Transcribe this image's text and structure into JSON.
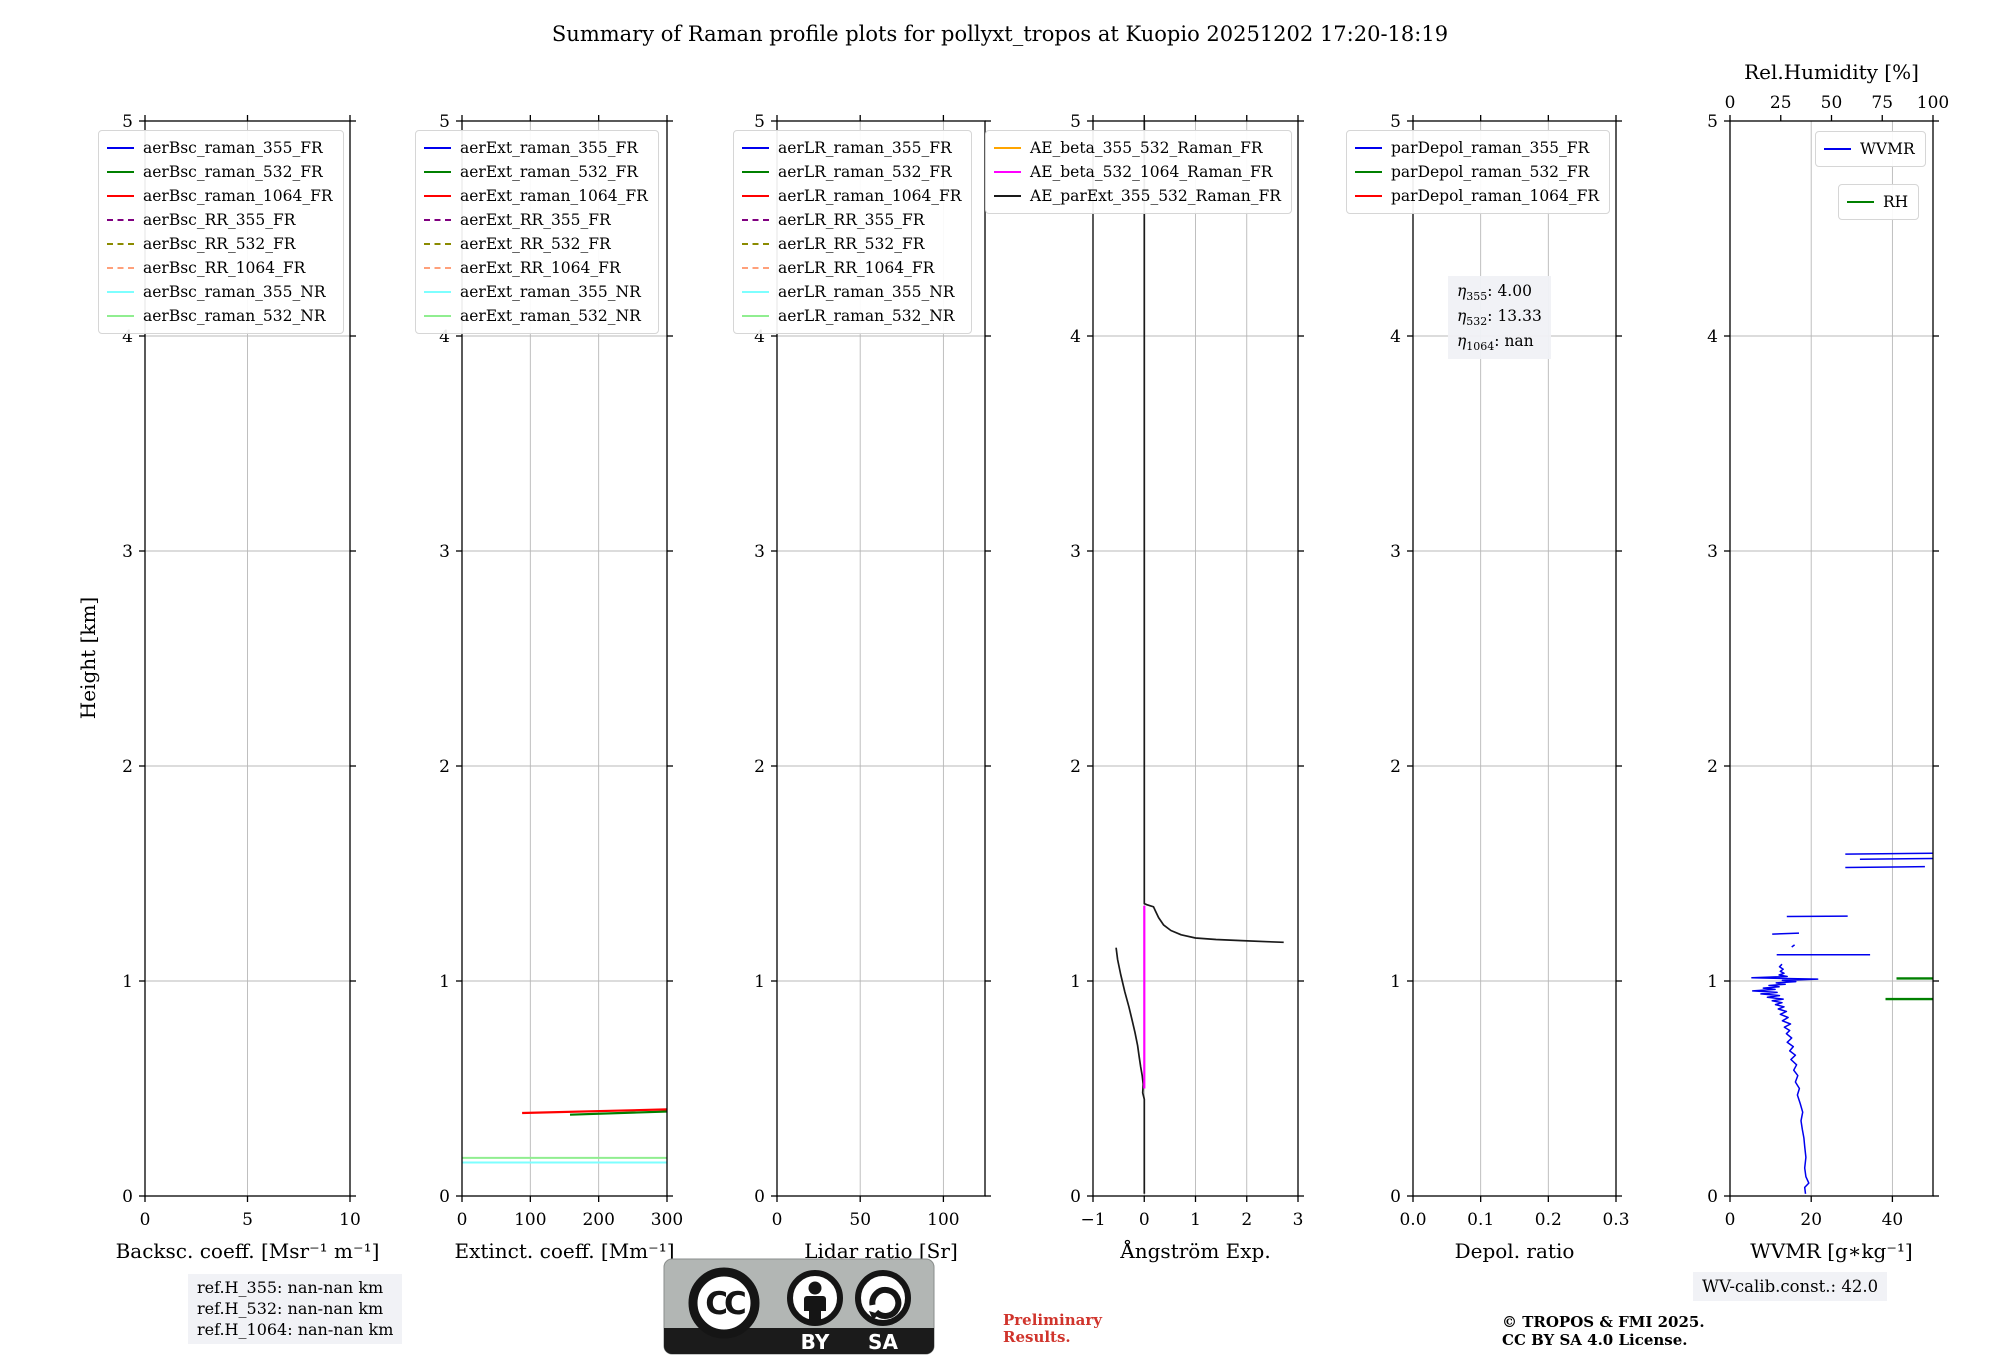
{
  "title": "Summary of Raman profile plots for pollyxt_tropos at Kuopio 20251202 17:20-18:19",
  "ylabel": "Height [km]",
  "footer": {
    "ref_h_lines": [
      "ref.H_355: nan-nan km",
      "ref.H_532: nan-nan km",
      "ref.H_1064: nan-nan km"
    ],
    "preliminary_lines": [
      "Preliminary",
      "Results."
    ],
    "copyright_lines": [
      "© TROPOS & FMI 2025.",
      "CC BY SA 4.0 License."
    ],
    "wv_calib": "WV-calib.const.: 42.0",
    "cc": {
      "cc": "CC",
      "by": "BY",
      "sa": "SA"
    }
  },
  "colors": {
    "blue": "#0000ee",
    "green": "#008000",
    "red": "#ff0000",
    "purple": "#800080",
    "olive": "#8b8b00",
    "salmon": "#ffa07a",
    "cyan": "#7dffff",
    "lightgreen": "#90ee90",
    "orange": "#ffa500",
    "magenta": "#ff00ff",
    "black": "#1a1a1a",
    "grid": "#b8b8b8"
  },
  "chart_data": [
    {
      "type": "line",
      "name": "backscatter-coefficient",
      "xlabel": "Backsc. coeff. [Msr⁻¹ m⁻¹]",
      "xlim": [
        0,
        10
      ],
      "xticks": [
        0,
        5,
        10
      ],
      "xtick_labels": [
        "0",
        "5",
        "10"
      ],
      "ylim": [
        0,
        5
      ],
      "yticks": [
        0,
        1,
        2,
        3,
        4,
        5
      ],
      "legend": [
        {
          "label": "aerBsc_raman_355_FR",
          "color": "#0000ee",
          "dash": false
        },
        {
          "label": "aerBsc_raman_532_FR",
          "color": "#008000",
          "dash": false
        },
        {
          "label": "aerBsc_raman_1064_FR",
          "color": "#ff0000",
          "dash": false
        },
        {
          "label": "aerBsc_RR_355_FR",
          "color": "#800080",
          "dash": true
        },
        {
          "label": "aerBsc_RR_532_FR",
          "color": "#8b8b00",
          "dash": true
        },
        {
          "label": "aerBsc_RR_1064_FR",
          "color": "#ffa07a",
          "dash": true
        },
        {
          "label": "aerBsc_raman_355_NR",
          "color": "#7dffff",
          "dash": false
        },
        {
          "label": "aerBsc_raman_532_NR",
          "color": "#90ee90",
          "dash": false
        }
      ],
      "series": []
    },
    {
      "type": "line",
      "name": "extinction-coefficient",
      "xlabel": "Extinct. coeff. [Mm⁻¹]",
      "xlim": [
        0,
        300
      ],
      "xticks": [
        0,
        100,
        200,
        300
      ],
      "xtick_labels": [
        "0",
        "100",
        "200",
        "300"
      ],
      "ylim": [
        0,
        5
      ],
      "yticks": [
        0,
        1,
        2,
        3,
        4,
        5
      ],
      "legend": [
        {
          "label": "aerExt_raman_355_FR",
          "color": "#0000ee",
          "dash": false
        },
        {
          "label": "aerExt_raman_532_FR",
          "color": "#008000",
          "dash": false
        },
        {
          "label": "aerExt_raman_1064_FR",
          "color": "#ff0000",
          "dash": false
        },
        {
          "label": "aerExt_RR_355_FR",
          "color": "#800080",
          "dash": true
        },
        {
          "label": "aerExt_RR_532_FR",
          "color": "#8b8b00",
          "dash": true
        },
        {
          "label": "aerExt_RR_1064_FR",
          "color": "#ffa07a",
          "dash": true
        },
        {
          "label": "aerExt_raman_355_NR",
          "color": "#7dffff",
          "dash": false
        },
        {
          "label": "aerExt_raman_532_NR",
          "color": "#90ee90",
          "dash": false
        }
      ],
      "series": [
        {
          "name": "aerExt_raman_532_NR",
          "color": "#90ee90",
          "width": 2,
          "points": [
            [
              0,
              0.177
            ],
            [
              300,
              0.177
            ]
          ]
        },
        {
          "name": "aerExt_raman_355_NR",
          "color": "#7dffff",
          "width": 2,
          "points": [
            [
              0,
              0.156
            ],
            [
              300,
              0.156
            ]
          ]
        },
        {
          "name": "aerExt_raman_532_FR",
          "color": "#008000",
          "width": 2.2,
          "points": [
            [
              158,
              0.378
            ],
            [
              300,
              0.393
            ]
          ]
        },
        {
          "name": "aerExt_raman_1064_FR",
          "color": "#ff0000",
          "width": 2.2,
          "points": [
            [
              88,
              0.386
            ],
            [
              300,
              0.403
            ]
          ]
        }
      ]
    },
    {
      "type": "line",
      "name": "lidar-ratio",
      "xlabel": "Lidar ratio [Sr]",
      "xlim": [
        0,
        125
      ],
      "xticks": [
        0,
        50,
        100
      ],
      "xtick_labels": [
        "0",
        "50",
        "100"
      ],
      "ylim": [
        0,
        5
      ],
      "yticks": [
        0,
        1,
        2,
        3,
        4,
        5
      ],
      "legend": [
        {
          "label": "aerLR_raman_355_FR",
          "color": "#0000ee",
          "dash": false
        },
        {
          "label": "aerLR_raman_532_FR",
          "color": "#008000",
          "dash": false
        },
        {
          "label": "aerLR_raman_1064_FR",
          "color": "#ff0000",
          "dash": false
        },
        {
          "label": "aerLR_RR_355_FR",
          "color": "#800080",
          "dash": true
        },
        {
          "label": "aerLR_RR_532_FR",
          "color": "#8b8b00",
          "dash": true
        },
        {
          "label": "aerLR_RR_1064_FR",
          "color": "#ffa07a",
          "dash": true
        },
        {
          "label": "aerLR_raman_355_NR",
          "color": "#7dffff",
          "dash": false
        },
        {
          "label": "aerLR_raman_532_NR",
          "color": "#90ee90",
          "dash": false
        }
      ],
      "series": []
    },
    {
      "type": "line",
      "name": "angstrom-exponent",
      "xlabel": "Ångström Exp.",
      "xlim": [
        -1,
        3
      ],
      "xticks": [
        -1,
        0,
        1,
        2,
        3
      ],
      "xtick_labels": [
        "−1",
        "0",
        "1",
        "2",
        "3"
      ],
      "ylim": [
        0,
        5
      ],
      "yticks": [
        0,
        1,
        2,
        3,
        4,
        5
      ],
      "legend": [
        {
          "label": "AE_beta_355_532_Raman_FR",
          "color": "#ffa500",
          "dash": false
        },
        {
          "label": "AE_beta_532_1064_Raman_FR",
          "color": "#ff00ff",
          "dash": false
        },
        {
          "label": "AE_parExt_355_532_Raman_FR",
          "color": "#1a1a1a",
          "dash": false
        }
      ],
      "series": [
        {
          "name": "AE_parExt_355_532_Raman_FR_upper",
          "color": "#1a1a1a",
          "width": 1.7,
          "points": [
            [
              0,
              5
            ],
            [
              0,
              1.36
            ],
            [
              0.05,
              1.355
            ],
            [
              0.18,
              1.345
            ],
            [
              0.22,
              1.325
            ],
            [
              0.28,
              1.295
            ],
            [
              0.38,
              1.26
            ],
            [
              0.52,
              1.235
            ],
            [
              0.72,
              1.215
            ],
            [
              1.0,
              1.2
            ],
            [
              1.4,
              1.193
            ],
            [
              1.9,
              1.188
            ],
            [
              2.4,
              1.183
            ],
            [
              2.72,
              1.18
            ]
          ]
        },
        {
          "name": "AE_parExt_355_532_Raman_FR_lower",
          "color": "#1a1a1a",
          "width": 1.7,
          "points": [
            [
              -0.55,
              1.155
            ],
            [
              -0.52,
              1.1
            ],
            [
              -0.46,
              1.03
            ],
            [
              -0.38,
              0.95
            ],
            [
              -0.3,
              0.88
            ],
            [
              -0.24,
              0.82
            ],
            [
              -0.18,
              0.76
            ],
            [
              -0.13,
              0.7
            ],
            [
              -0.1,
              0.65
            ],
            [
              -0.07,
              0.6
            ],
            [
              -0.04,
              0.56
            ],
            [
              -0.02,
              0.52
            ],
            [
              -0.03,
              0.48
            ],
            [
              0,
              0.45
            ],
            [
              0,
              0.01
            ]
          ]
        },
        {
          "name": "AE_beta_532_1064_Raman_FR",
          "color": "#ff00ff",
          "width": 2.2,
          "points": [
            [
              0,
              1.35
            ],
            [
              0,
              0.5
            ]
          ]
        }
      ]
    },
    {
      "type": "line",
      "name": "depolarization-ratio",
      "xlabel": "Depol. ratio",
      "xlim": [
        0,
        0.3
      ],
      "xticks": [
        0,
        0.1,
        0.2,
        0.3
      ],
      "xtick_labels": [
        "0.0",
        "0.1",
        "0.2",
        "0.3"
      ],
      "ylim": [
        0,
        5
      ],
      "yticks": [
        0,
        1,
        2,
        3,
        4,
        5
      ],
      "legend": [
        {
          "label": "parDepol_raman_355_FR",
          "color": "#0000ee",
          "dash": false
        },
        {
          "label": "parDepol_raman_532_FR",
          "color": "#008000",
          "dash": false
        },
        {
          "label": "parDepol_raman_1064_FR",
          "color": "#ff0000",
          "dash": false
        }
      ],
      "series": [],
      "annotation": {
        "rows": [
          {
            "sym": "η",
            "sub": "355",
            "rest": ": 4.00"
          },
          {
            "sym": "η",
            "sub": "532",
            "rest": ": 13.33"
          },
          {
            "sym": "η",
            "sub": "1064",
            "rest": ": nan"
          }
        ]
      }
    },
    {
      "type": "line",
      "name": "water-vapor-mixing-ratio",
      "xlabel": "WVMR [g∗kg⁻¹]",
      "xlim": [
        0,
        50
      ],
      "xticks": [
        0,
        20,
        40
      ],
      "xtick_labels": [
        "0",
        "20",
        "40"
      ],
      "ylim": [
        0,
        5
      ],
      "yticks": [
        0,
        1,
        2,
        3,
        4,
        5
      ],
      "top_axis": {
        "label": "Rel.Humidity [%]",
        "lim": [
          0,
          100
        ],
        "ticks": [
          0,
          25,
          50,
          75,
          100
        ],
        "tick_labels": [
          "0",
          "25",
          "50",
          "75",
          "100"
        ]
      },
      "legend": [
        {
          "label": "WVMR",
          "color": "#0000ee",
          "dash": false
        }
      ],
      "legend2": [
        {
          "label": "RH",
          "color": "#008000",
          "dash": false
        }
      ],
      "series": [
        {
          "name": "WVMR_profile",
          "color": "#0000ee",
          "width": 1.5,
          "points": [
            [
              18.6,
              0.01
            ],
            [
              18.4,
              0.04
            ],
            [
              19.4,
              0.06
            ],
            [
              18.7,
              0.09
            ],
            [
              18.4,
              0.13
            ],
            [
              18.7,
              0.18
            ],
            [
              18.4,
              0.23
            ],
            [
              18.2,
              0.27
            ],
            [
              17.8,
              0.31
            ],
            [
              17.5,
              0.35
            ],
            [
              17.9,
              0.39
            ],
            [
              17.3,
              0.43
            ],
            [
              16.6,
              0.47
            ],
            [
              17.1,
              0.5
            ],
            [
              16.1,
              0.53
            ],
            [
              16.7,
              0.56
            ],
            [
              15.7,
              0.585
            ],
            [
              16.4,
              0.61
            ],
            [
              15.0,
              0.635
            ],
            [
              16.1,
              0.655
            ],
            [
              14.7,
              0.675
            ],
            [
              15.6,
              0.695
            ],
            [
              14.1,
              0.715
            ],
            [
              15.2,
              0.735
            ],
            [
              13.9,
              0.755
            ],
            [
              14.7,
              0.77
            ],
            [
              13.4,
              0.785
            ],
            [
              14.9,
              0.8
            ],
            [
              12.9,
              0.815
            ],
            [
              14.3,
              0.83
            ],
            [
              12.4,
              0.845
            ],
            [
              13.9,
              0.858
            ],
            [
              11.9,
              0.87
            ],
            [
              13.3,
              0.88
            ],
            [
              11.2,
              0.89
            ],
            [
              12.8,
              0.899
            ],
            [
              10.4,
              0.908
            ],
            [
              13.1,
              0.916
            ],
            [
              9.2,
              0.924
            ],
            [
              12.2,
              0.932
            ],
            [
              7.6,
              0.94
            ],
            [
              11.6,
              0.947
            ],
            [
              5.6,
              0.954
            ],
            [
              11.1,
              0.961
            ],
            [
              8.2,
              0.967
            ],
            [
              12.1,
              0.973
            ],
            [
              9.6,
              0.979
            ],
            [
              13.6,
              0.985
            ],
            [
              11.4,
              0.991
            ],
            [
              16.2,
              0.997
            ],
            [
              12.9,
              1.003
            ],
            [
              21.6,
              1.009
            ],
            [
              5.4,
              1.015
            ],
            [
              14.1,
              1.021
            ],
            [
              12.1,
              1.028
            ],
            [
              13.3,
              1.036
            ],
            [
              12.4,
              1.045
            ],
            [
              13.1,
              1.055
            ],
            [
              12.2,
              1.066
            ],
            [
              12.8,
              1.078
            ]
          ]
        },
        {
          "name": "WVMR_segment_1.12km",
          "color": "#0000ee",
          "width": 1.5,
          "points": [
            [
              11.5,
              1.122
            ],
            [
              34.5,
              1.122
            ]
          ]
        },
        {
          "name": "WVMR_dash_1.16km",
          "color": "#0000ee",
          "width": 1.5,
          "points": [
            [
              15.2,
              1.158
            ],
            [
              15.9,
              1.168
            ]
          ]
        },
        {
          "name": "WVMR_segment_1.22km",
          "color": "#0000ee",
          "width": 1.5,
          "points": [
            [
              10.4,
              1.218
            ],
            [
              17.0,
              1.223
            ]
          ]
        },
        {
          "name": "WVMR_segment_1.30km",
          "color": "#0000ee",
          "width": 1.5,
          "points": [
            [
              14.0,
              1.3
            ],
            [
              29.0,
              1.302
            ]
          ]
        },
        {
          "name": "WVMR_segment_1.53km",
          "color": "#0000ee",
          "width": 1.5,
          "points": [
            [
              28.4,
              1.528
            ],
            [
              48.0,
              1.532
            ]
          ]
        },
        {
          "name": "WVMR_segment_1.57km",
          "color": "#0000ee",
          "width": 1.5,
          "points": [
            [
              32.0,
              1.566
            ],
            [
              50.0,
              1.57
            ]
          ]
        },
        {
          "name": "WVMR_segment_1.59km",
          "color": "#0000ee",
          "width": 1.5,
          "points": [
            [
              28.4,
              1.59
            ],
            [
              50.0,
              1.594
            ]
          ]
        },
        {
          "name": "RH_segment_1.01km",
          "color": "#008000",
          "width": 2.4,
          "points": [
            [
              41.0,
              1.012
            ],
            [
              50.0,
              1.012
            ]
          ]
        },
        {
          "name": "RH_segment_0.92km",
          "color": "#008000",
          "width": 2.4,
          "points": [
            [
              38.3,
              0.916
            ],
            [
              50.0,
              0.916
            ]
          ]
        }
      ]
    }
  ]
}
